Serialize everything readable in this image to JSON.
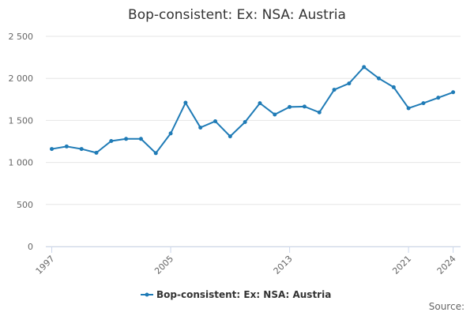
{
  "chart_data": {
    "type": "line",
    "title": "Bop-consistent: Ex: NSA: Austria",
    "source": "Source:",
    "x": [
      1997,
      1998,
      1999,
      2000,
      2001,
      2002,
      2003,
      2004,
      2005,
      2006,
      2007,
      2008,
      2009,
      2010,
      2011,
      2012,
      2013,
      2014,
      2015,
      2016,
      2017,
      2018,
      2019,
      2020,
      2021,
      2022,
      2023,
      2024
    ],
    "series": [
      {
        "name": "Bop-consistent: Ex: NSA: Austria",
        "color": "#1f7bb6",
        "values": [
          1160,
          1190,
          1160,
          1115,
          1255,
          1280,
          1280,
          1110,
          1345,
          1710,
          1415,
          1490,
          1310,
          1480,
          1705,
          1570,
          1660,
          1665,
          1595,
          1865,
          1940,
          2135,
          2000,
          1895,
          1645,
          1705,
          1770,
          1835
        ]
      }
    ],
    "xlim": [
      1996.6,
      2024.5
    ],
    "xticks": [
      1997,
      2005,
      2013,
      2021,
      2024
    ],
    "ylim": [
      0,
      2500
    ],
    "yticks": [
      0,
      500,
      {
        "value": 1000,
        "label": "1 000"
      },
      {
        "value": 1500,
        "label": "1 500"
      },
      {
        "value": 2000,
        "label": "2 000"
      },
      {
        "value": 2500,
        "label": "2 500"
      }
    ],
    "grid": true,
    "legend": "bottom"
  }
}
